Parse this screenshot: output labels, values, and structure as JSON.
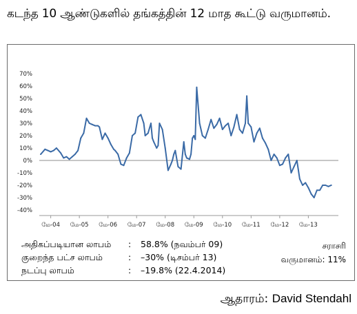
{
  "title": "கடந்த 10 ஆண்டுகளில் தங்கத்தின் 12 மாத கூட்டு வருமானம்.",
  "stats": [
    {
      "label": "அதிகப்படியான லாபம்",
      "value": "58.8% (நவம்பர் 09)"
    },
    {
      "label": "குறைந்த பட்ச லாபம்",
      "value": "–30% (டிசம்பர் 13)"
    },
    {
      "label": "நடப்பு லாபம்",
      "value": "–19.8% (22.4.2014)"
    }
  ],
  "average": {
    "label": "சராசரி",
    "text": "வருமானம்: 11%"
  },
  "source": {
    "prefix": "ஆதாரம்:",
    "name": "David Stendahl"
  },
  "chart_data": {
    "type": "line",
    "title": "",
    "xlabel": "",
    "ylabel": "",
    "ylim": [
      -40,
      70
    ],
    "yticks": [
      70,
      60,
      50,
      40,
      30,
      20,
      10,
      0,
      -10,
      -20,
      -30,
      -40
    ],
    "ytick_labels": [
      "70%",
      "60%",
      "50%",
      "40%",
      "30%",
      "20%",
      "10%",
      "0%",
      "-10%",
      "-20%",
      "-30%",
      "-40%"
    ],
    "x_range": [
      2003.9,
      2014.35
    ],
    "xticks": [
      2004.3,
      2005.3,
      2006.3,
      2007.3,
      2008.3,
      2009.3,
      2010.3,
      2011.3,
      2012.3,
      2013.3
    ],
    "xtick_labels": [
      "மே-04",
      "மே-05",
      "மே-06",
      "மே-07",
      "மே-08",
      "மே-09",
      "மே-10",
      "மே-11",
      "மே-12",
      "மே-13"
    ],
    "grid": false,
    "line_color": "#3a6aa6",
    "x": [
      2003.95,
      2004.1,
      2004.2,
      2004.3,
      2004.4,
      2004.5,
      2004.65,
      2004.75,
      2004.85,
      2004.95,
      2005.05,
      2005.15,
      2005.25,
      2005.35,
      2005.45,
      2005.55,
      2005.65,
      2005.75,
      2005.85,
      2005.95,
      2006.0,
      2006.1,
      2006.2,
      2006.3,
      2006.4,
      2006.5,
      2006.55,
      2006.65,
      2006.75,
      2006.85,
      2006.95,
      2007.05,
      2007.15,
      2007.25,
      2007.35,
      2007.45,
      2007.55,
      2007.6,
      2007.7,
      2007.8,
      2007.85,
      2007.9,
      2008.0,
      2008.05,
      2008.1,
      2008.2,
      2008.3,
      2008.4,
      2008.5,
      2008.55,
      2008.6,
      2008.65,
      2008.75,
      2008.85,
      2008.95,
      2009.0,
      2009.05,
      2009.15,
      2009.2,
      2009.25,
      2009.3,
      2009.35,
      2009.4,
      2009.5,
      2009.6,
      2009.7,
      2009.8,
      2009.9,
      2010.0,
      2010.1,
      2010.2,
      2010.3,
      2010.4,
      2010.5,
      2010.6,
      2010.7,
      2010.8,
      2010.9,
      2011.0,
      2011.1,
      2011.15,
      2011.2,
      2011.3,
      2011.4,
      2011.5,
      2011.6,
      2011.7,
      2011.8,
      2011.9,
      2012.0,
      2012.1,
      2012.2,
      2012.3,
      2012.4,
      2012.5,
      2012.6,
      2012.7,
      2012.8,
      2012.9,
      2013.0,
      2013.1,
      2013.2,
      2013.3,
      2013.4,
      2013.5,
      2013.6,
      2013.7,
      2013.8,
      2013.9,
      2014.0,
      2014.1
    ],
    "values": [
      5,
      9,
      8,
      7,
      8,
      10,
      6,
      2,
      3,
      1,
      3,
      5,
      8,
      18,
      22,
      34,
      30,
      29,
      28,
      28,
      27,
      17,
      22,
      18,
      13,
      9,
      8,
      5,
      -3,
      -4,
      2,
      6,
      20,
      22,
      35,
      37,
      30,
      20,
      22,
      30,
      18,
      15,
      10,
      12,
      30,
      25,
      10,
      -8,
      -3,
      0,
      5,
      8,
      -5,
      -7,
      15,
      5,
      2,
      1,
      5,
      18,
      20,
      17,
      59,
      30,
      20,
      18,
      25,
      33,
      26,
      29,
      34,
      25,
      28,
      30,
      20,
      27,
      37,
      25,
      22,
      30,
      52,
      30,
      27,
      15,
      22,
      26,
      18,
      14,
      9,
      0,
      5,
      2,
      -4,
      -3,
      2,
      5,
      -10,
      -5,
      0,
      -15,
      -20,
      -18,
      -22,
      -27,
      -30,
      -24,
      -24,
      -20,
      -20,
      -21,
      -20
    ]
  }
}
